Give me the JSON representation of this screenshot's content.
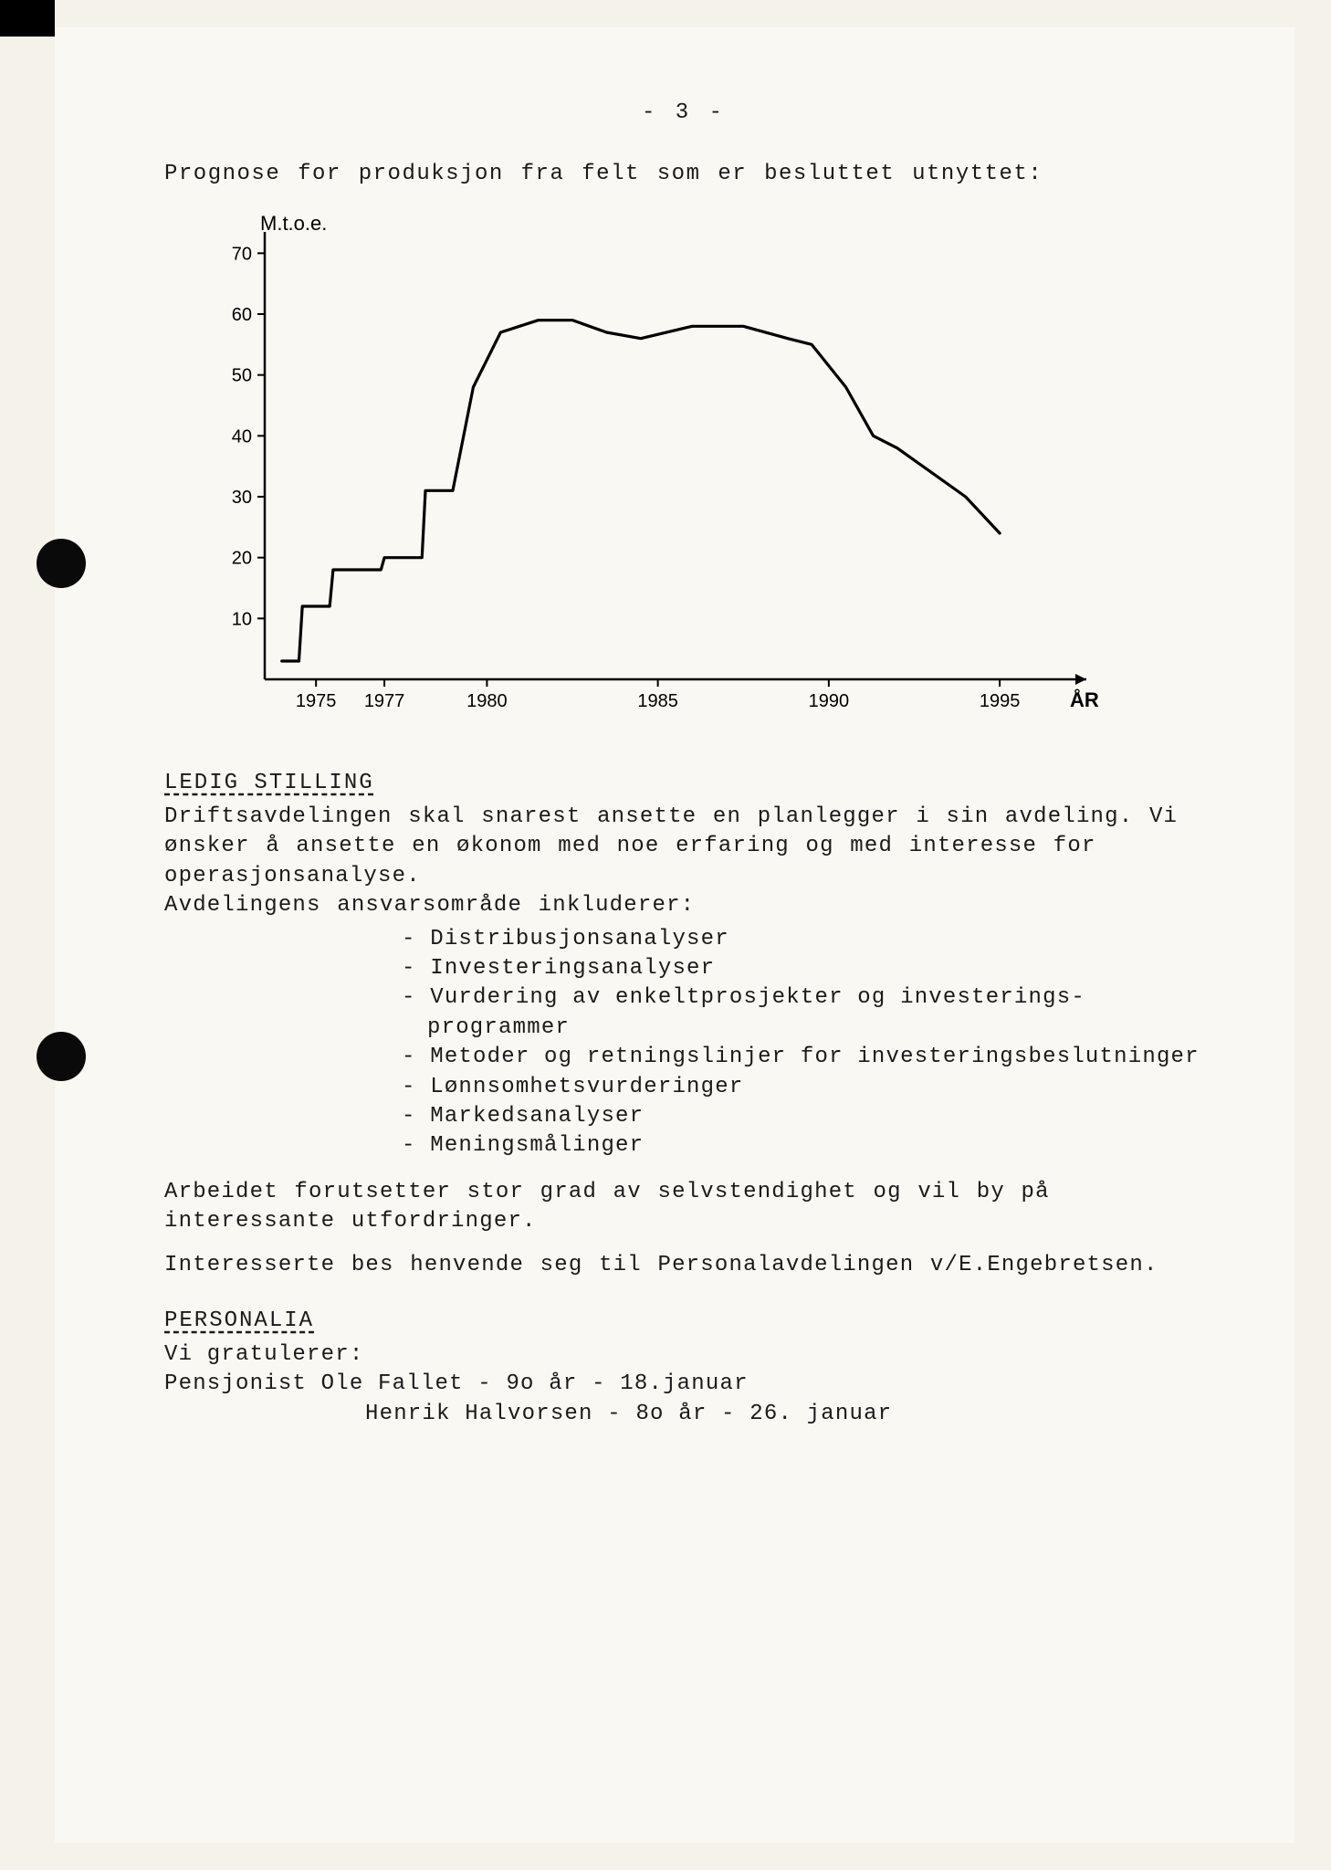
{
  "page_number": "- 3 -",
  "intro": "Prognose for produksjon fra felt som er besluttet utnyttet:",
  "chart": {
    "type": "line",
    "y_label": "M.t.o.e.",
    "x_label": "ÅR",
    "y_ticks": [
      10,
      20,
      30,
      40,
      50,
      60,
      70
    ],
    "x_ticks": [
      1975,
      1977,
      1980,
      1985,
      1990,
      1995
    ],
    "ylim": [
      0,
      72
    ],
    "xlim": [
      1973.5,
      1997
    ],
    "line_color": "#000000",
    "line_width": 3.2,
    "axis_color": "#000000",
    "axis_width": 2.5,
    "background_color": "#faf8f2",
    "tick_fontsize": 20,
    "label_fontsize": 22,
    "data": [
      {
        "x": 1974.0,
        "y": 3
      },
      {
        "x": 1974.5,
        "y": 3
      },
      {
        "x": 1974.6,
        "y": 12
      },
      {
        "x": 1975.4,
        "y": 12
      },
      {
        "x": 1975.5,
        "y": 18
      },
      {
        "x": 1976.9,
        "y": 18
      },
      {
        "x": 1977.0,
        "y": 20
      },
      {
        "x": 1978.1,
        "y": 20
      },
      {
        "x": 1978.2,
        "y": 31
      },
      {
        "x": 1979.0,
        "y": 31
      },
      {
        "x": 1979.6,
        "y": 48
      },
      {
        "x": 1980.4,
        "y": 57
      },
      {
        "x": 1981.5,
        "y": 59
      },
      {
        "x": 1982.5,
        "y": 59
      },
      {
        "x": 1983.5,
        "y": 57
      },
      {
        "x": 1984.5,
        "y": 56
      },
      {
        "x": 1986.0,
        "y": 58
      },
      {
        "x": 1987.5,
        "y": 58
      },
      {
        "x": 1988.8,
        "y": 56
      },
      {
        "x": 1989.5,
        "y": 55
      },
      {
        "x": 1990.5,
        "y": 48
      },
      {
        "x": 1991.3,
        "y": 40
      },
      {
        "x": 1992.0,
        "y": 38
      },
      {
        "x": 1993.0,
        "y": 34
      },
      {
        "x": 1994.0,
        "y": 30
      },
      {
        "x": 1995.0,
        "y": 24
      }
    ]
  },
  "section1": {
    "heading": "LEDIG STILLING",
    "para1": "Driftsavdelingen skal snarest ansette en planlegger i sin avdeling. Vi ønsker å ansette en økonom med noe erfaring og med interesse for operasjonsanalyse.",
    "para2": "Avdelingens ansvarsområde inkluderer:",
    "items": [
      "Distribusjonsanalyser",
      "Investeringsanalyser",
      "Vurdering av enkeltprosjekter og investerings-programmer",
      "Metoder og retningslinjer for investeringsbeslutninger",
      "Lønnsomhetsvurderinger",
      "Markedsanalyser",
      "Meningsmålinger"
    ],
    "para3": "Arbeidet forutsetter stor grad av selvstendighet og vil by på interessante utfordringer.",
    "para4": "Interesserte bes henvende seg til Personalavdelingen v/E.Engebretsen."
  },
  "section2": {
    "heading": "PERSONALIA",
    "line1": "Vi gratulerer:",
    "line2": "Pensjonist Ole Fallet - 9o år - 18.januar",
    "line3": "Henrik Halvorsen - 8o år - 26. januar"
  }
}
